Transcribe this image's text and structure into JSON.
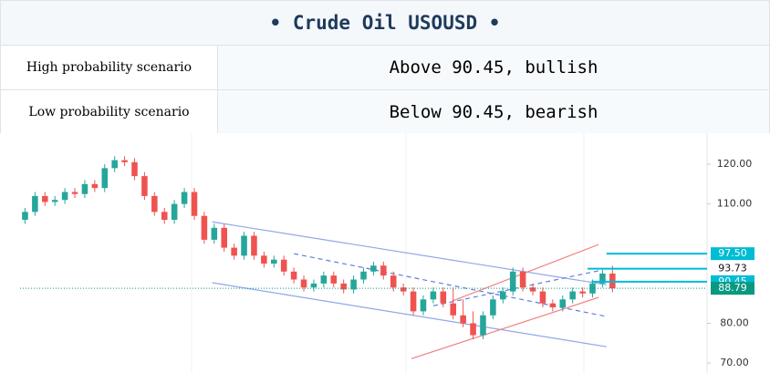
{
  "header": {
    "title": "Crude Oil USOUSD"
  },
  "table": {
    "rows": [
      [
        "High probability scenario",
        "Above 90.45, bullish"
      ],
      [
        "Low probability scenario",
        "Below 90.45, bearish"
      ]
    ]
  },
  "chart_data": {
    "type": "candlestick",
    "x": [
      0,
      1,
      2,
      3,
      4,
      5,
      6,
      7,
      8,
      9,
      10,
      11,
      12,
      13,
      14,
      15,
      16,
      17,
      18,
      19,
      20,
      21,
      22,
      23,
      24,
      25,
      26,
      27,
      28,
      29,
      30,
      31,
      32,
      33,
      34,
      35,
      36,
      37,
      38,
      39,
      40,
      41,
      42,
      43,
      44,
      45,
      46,
      47,
      48,
      49,
      50,
      51,
      52,
      53,
      54,
      55,
      56,
      57,
      58,
      59
    ],
    "open": [
      106,
      108,
      112,
      110.5,
      111,
      113,
      112.5,
      115,
      114,
      119,
      121,
      120.5,
      117,
      112,
      108,
      106,
      110,
      113,
      107,
      101,
      104,
      99,
      97,
      102,
      97,
      95,
      96,
      93,
      91,
      89,
      90,
      92,
      90,
      88.5,
      91,
      93,
      94.5,
      92,
      89,
      88,
      83,
      86,
      88,
      85,
      82,
      80,
      77,
      82,
      86,
      88,
      93,
      89,
      88,
      85,
      84,
      86,
      88,
      87.5,
      90,
      92.5
    ],
    "high": [
      109,
      113,
      113,
      112,
      114,
      114,
      116,
      116,
      120,
      122,
      122,
      121.5,
      118,
      113,
      109,
      111,
      114,
      114,
      108,
      105,
      105,
      100,
      103,
      103,
      98,
      97,
      97,
      94,
      92,
      91,
      93,
      93,
      91,
      92,
      94,
      95.5,
      95.5,
      93,
      90,
      89,
      87,
      89,
      89,
      89,
      86,
      83,
      83,
      87,
      89,
      94,
      94,
      90,
      89,
      86,
      87,
      89,
      89,
      91,
      93.5,
      94.5
    ],
    "low": [
      105,
      107,
      109.5,
      109.5,
      110,
      111.5,
      111.5,
      113,
      113,
      118,
      119.5,
      116,
      111,
      107,
      105,
      105,
      109,
      106,
      100,
      100,
      98,
      96,
      96,
      96,
      94,
      94,
      92,
      90,
      88,
      88,
      89,
      89,
      87.5,
      87.5,
      90,
      92,
      91,
      88,
      87,
      82,
      82,
      85,
      84,
      81,
      79,
      76,
      76,
      81,
      85,
      87,
      88,
      87,
      84,
      83,
      83,
      85,
      86.5,
      86.5,
      89,
      87.79
    ],
    "close": [
      108,
      112,
      110.5,
      111,
      113,
      112.5,
      115,
      114,
      119,
      121,
      120.5,
      117,
      112,
      108,
      106,
      110,
      113,
      107,
      101,
      104,
      99,
      97,
      102,
      97,
      95,
      96,
      93,
      91,
      89,
      90,
      92,
      90,
      88.5,
      91,
      93,
      94.5,
      92,
      89,
      88,
      83,
      86,
      88,
      85,
      82,
      80,
      77,
      82,
      86,
      88,
      93,
      89,
      88,
      85,
      84,
      86,
      88,
      87.5,
      90,
      92.5,
      88.79
    ],
    "up_color": "#26a69a",
    "down_color": "#ef5350",
    "xlim": [
      -0.5,
      68.5
    ],
    "ylim": [
      67.5,
      127.8
    ],
    "yticks": [
      {
        "value": 70,
        "label": "70.00"
      },
      {
        "value": 80,
        "label": "80.00"
      },
      {
        "value": 110,
        "label": "110.00"
      },
      {
        "value": 120,
        "label": "120.00"
      }
    ],
    "trendlines": [
      {
        "color": "#8fa8e8",
        "dash": false,
        "points": [
          [
            18.8,
            105.5
          ],
          [
            58.4,
            89.7
          ]
        ]
      },
      {
        "color": "#8fa8e8",
        "dash": false,
        "points": [
          [
            18.8,
            90.2
          ],
          [
            58.4,
            74.1
          ]
        ]
      },
      {
        "color": "#5b7fe0",
        "dash": true,
        "points": [
          [
            27,
            97.5
          ],
          [
            58.4,
            81.7
          ]
        ]
      },
      {
        "color": "#f08080",
        "dash": false,
        "points": [
          [
            38.8,
            71.1
          ],
          [
            57.6,
            86.5
          ]
        ]
      },
      {
        "color": "#f08080",
        "dash": false,
        "points": [
          [
            42.9,
            85.6
          ],
          [
            57.6,
            99.8
          ]
        ]
      },
      {
        "color": "#5b7fe0",
        "dash": true,
        "points": [
          [
            41,
            84.4
          ],
          [
            57.6,
            93.2
          ]
        ]
      }
    ],
    "levels": [
      {
        "value": 97.5,
        "label": "97.50",
        "color": "#00bcd4",
        "x": 58.4
      },
      {
        "value": 93.73,
        "label": "93.73",
        "color": "#00bcd4",
        "x": 56.5
      },
      {
        "value": 90.45,
        "label": "90.45",
        "color": "#00bcd4",
        "x": 56.9
      },
      {
        "value": 88.79,
        "label": "88.79",
        "color": "#089981",
        "x": -0.5
      }
    ]
  }
}
